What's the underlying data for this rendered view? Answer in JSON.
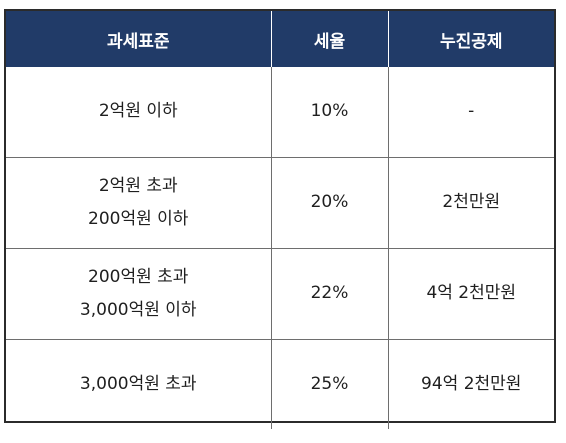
{
  "table": {
    "headers": [
      "과세표준",
      "세율",
      "누진공제"
    ],
    "rows": [
      {
        "bracket": [
          "2억원 이하"
        ],
        "rate": "10%",
        "deduction": "-"
      },
      {
        "bracket": [
          "2억원 초과",
          "200억원 이하"
        ],
        "rate": "20%",
        "deduction": "2천만원"
      },
      {
        "bracket": [
          "200억원 초과",
          "3,000억원 이하"
        ],
        "rate": "22%",
        "deduction": "4억 2천만원"
      },
      {
        "bracket": [
          "3,000억원 초과"
        ],
        "rate": "25%",
        "deduction": "94억 2천만원"
      }
    ]
  },
  "colors": {
    "header_bg": "#213b68",
    "header_text": "#ffffff",
    "grid": "#6e6e6e",
    "frame": "#2b2b2b"
  }
}
